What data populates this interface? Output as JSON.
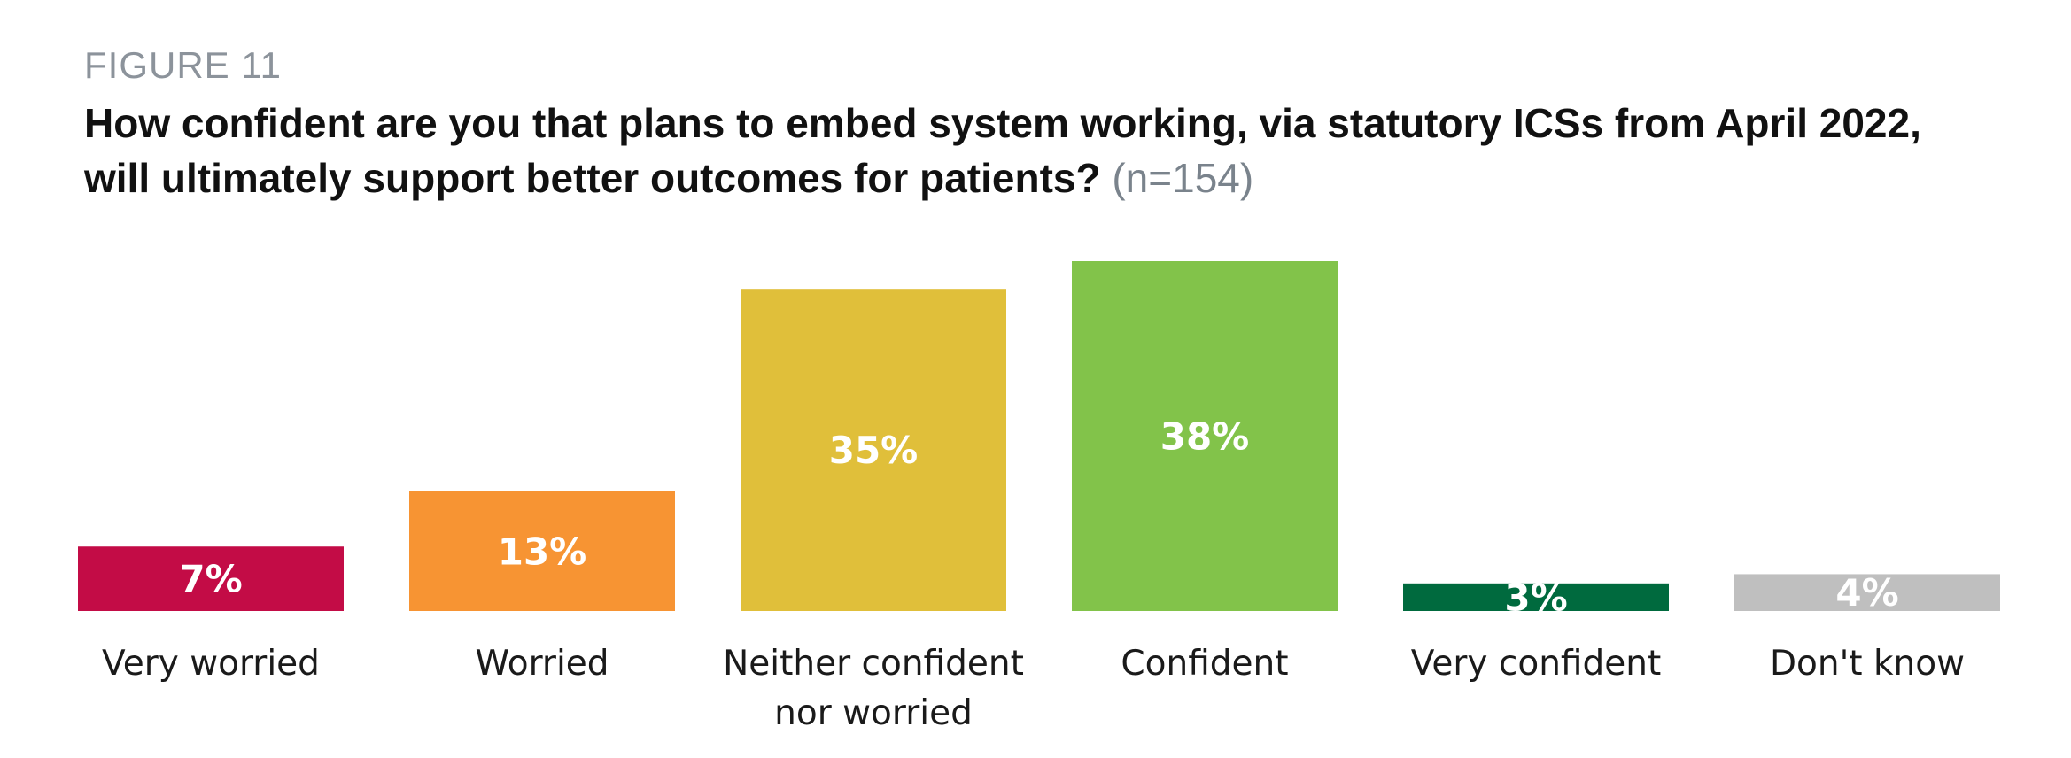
{
  "figure_label": "FIGURE 11",
  "title": "How confident are you that plans to embed system working, via statutory ICSs from April 2022, will ultimately support better outcomes for patients?",
  "subtitle": "(n=154)",
  "chart_data": {
    "type": "bar",
    "title": "How confident are you that plans to embed system working, via statutory ICSs from April 2022, will ultimately support better outcomes for patients?",
    "subtitle": "(n=154)",
    "categories": [
      "Very worried",
      "Worried",
      "Neither confident nor worried",
      "Confident",
      "Very confident",
      "Don't know"
    ],
    "category_label_lines": [
      [
        "Very worried"
      ],
      [
        "Worried"
      ],
      [
        "Neither confident",
        "nor worried"
      ],
      [
        "Confident"
      ],
      [
        "Very confident"
      ],
      [
        "Don't know"
      ]
    ],
    "values": [
      7,
      13,
      35,
      38,
      3,
      4
    ],
    "data_labels": [
      "7%",
      "13%",
      "35%",
      "38%",
      "3%",
      "4%"
    ],
    "colors": [
      "#c30c46",
      "#f79433",
      "#e0bf3a",
      "#82c34a",
      "#006a3e",
      "#bfbfbf"
    ],
    "xlabel": "",
    "ylabel": "",
    "ylim": [
      0,
      38
    ],
    "grid": false,
    "legend": "none"
  }
}
